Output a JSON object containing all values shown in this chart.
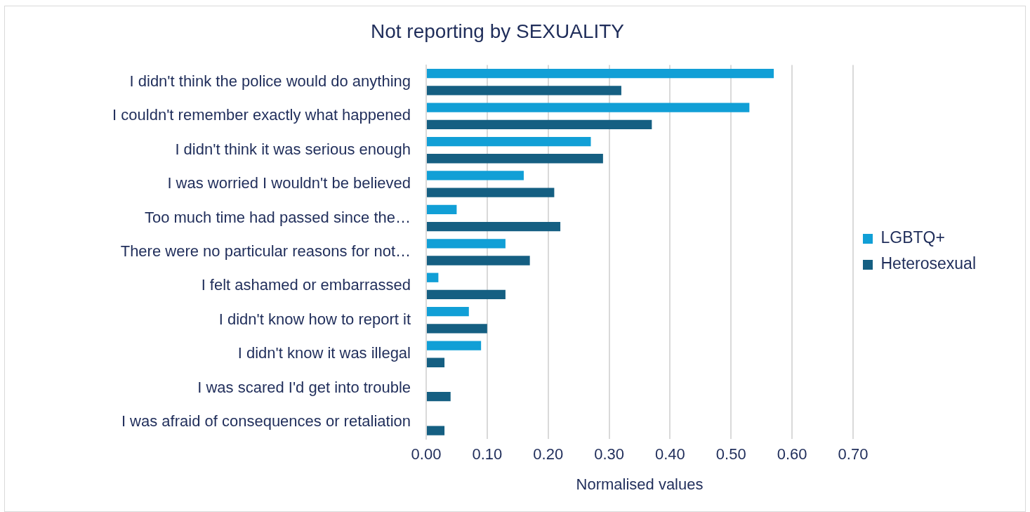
{
  "chart_data": {
    "type": "bar",
    "orientation": "horizontal",
    "title": "Not reporting by SEXUALITY",
    "xlabel": "Normalised values",
    "categories": [
      "I didn't think the police would do anything",
      "I couldn't remember exactly what happened",
      "I didn't think it was serious enough",
      "I was worried I wouldn't be believed",
      "Too much time had passed since the…",
      "There were no particular reasons for not…",
      "I felt ashamed or embarrassed",
      "I didn't know how to report it",
      "I didn't know it was illegal",
      "I was scared I'd get into trouble",
      "I was afraid of consequences or retaliation"
    ],
    "series": [
      {
        "name": "LGBTQ+",
        "color": "#119fd6",
        "values": [
          0.57,
          0.53,
          0.27,
          0.16,
          0.05,
          0.13,
          0.02,
          0.07,
          0.09,
          0,
          0
        ]
      },
      {
        "name": "Heterosexual",
        "color": "#155f82",
        "values": [
          0.32,
          0.37,
          0.29,
          0.21,
          0.22,
          0.17,
          0.13,
          0.1,
          0.03,
          0.04,
          0.03
        ]
      }
    ],
    "xlim": [
      0,
      0.7
    ],
    "xticks": [
      {
        "value": 0,
        "label": "0.00"
      },
      {
        "value": 0.1,
        "label": "0.10"
      },
      {
        "value": 0.2,
        "label": "0.20"
      },
      {
        "value": 0.3,
        "label": "0.30"
      },
      {
        "value": 0.4,
        "label": "0.40"
      },
      {
        "value": 0.5,
        "label": "0.50"
      },
      {
        "value": 0.6,
        "label": "0.60"
      },
      {
        "value": 0.7,
        "label": "0.70"
      }
    ],
    "grid": "x",
    "legend": "right"
  }
}
